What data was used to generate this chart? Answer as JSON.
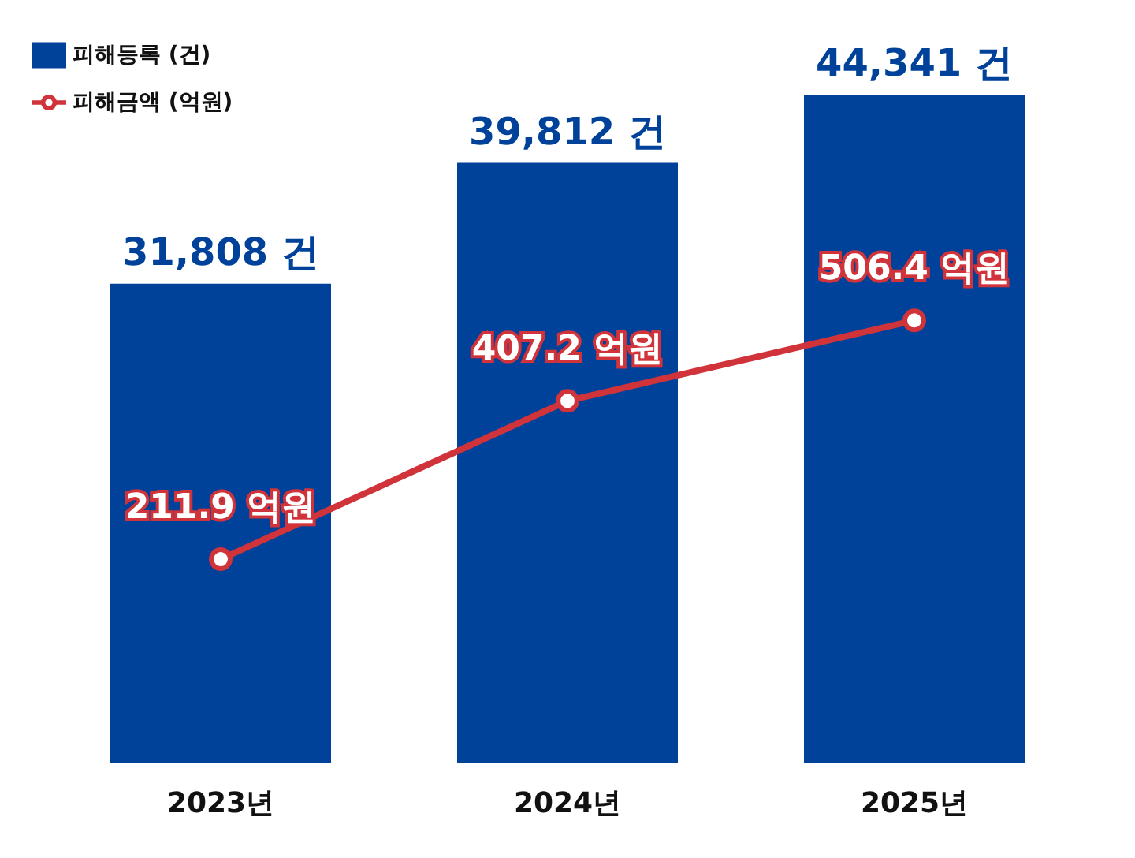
{
  "chart_data": {
    "type": "bar",
    "categories": [
      "2023년",
      "2024년",
      "2025년"
    ],
    "series": [
      {
        "name": "피해등록 (건)",
        "color": "#00429a",
        "values": [
          31808,
          39812,
          44341
        ],
        "value_labels": [
          "31,808 건",
          "39,812 건",
          "44,341 건"
        ]
      },
      {
        "name": "피해금액 (억원)",
        "type": "line",
        "axis": "y2",
        "color": "#d0333a",
        "marker": "circle",
        "values": [
          211.9,
          407.2,
          506.4
        ],
        "value_labels": [
          "211.9 억원",
          "407.2 억원",
          "506.4 억원"
        ]
      }
    ],
    "legend": "top left",
    "grid": false
  }
}
